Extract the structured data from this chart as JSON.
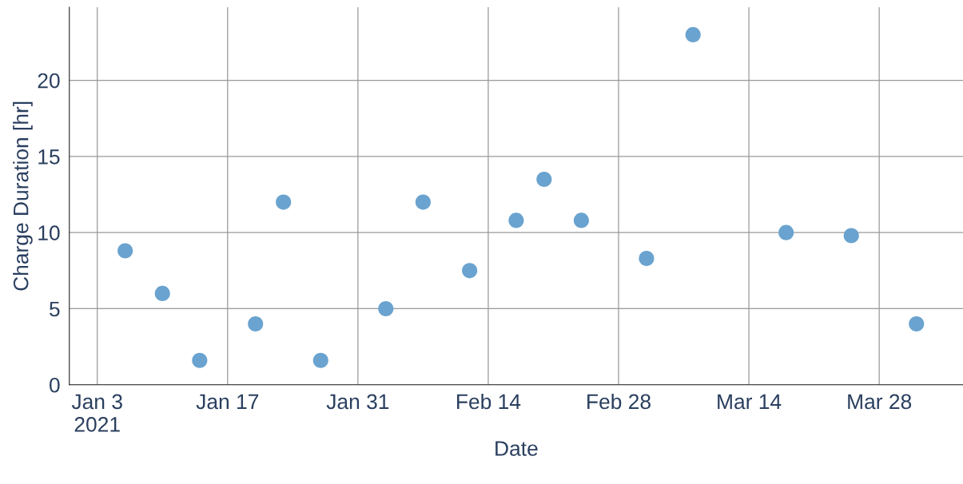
{
  "chart_data": {
    "type": "scatter",
    "xlabel": "Date",
    "ylabel": "Charge Duration [hr]",
    "x": [
      "2021-01-06",
      "2021-01-10",
      "2021-01-14",
      "2021-01-20",
      "2021-01-23",
      "2021-01-27",
      "2021-02-03",
      "2021-02-07",
      "2021-02-12",
      "2021-02-17",
      "2021-02-20",
      "2021-02-24",
      "2021-03-03",
      "2021-03-08",
      "2021-03-18",
      "2021-03-25",
      "2021-04-01"
    ],
    "series": [
      {
        "color": "#6aa3cf",
        "values": [
          8.8,
          6,
          1.6,
          4,
          12,
          1.6,
          5,
          12,
          7.5,
          10.8,
          13.5,
          10.8,
          8.3,
          23,
          10,
          9.8,
          4
        ]
      }
    ],
    "xlim": [
      "2020-12-31",
      "2021-04-06"
    ],
    "xticks": [
      {
        "value": "2021-01-03",
        "label": "Jan 3\n2021"
      },
      {
        "value": "2021-01-17",
        "label": "Jan 17"
      },
      {
        "value": "2021-01-31",
        "label": "Jan 31"
      },
      {
        "value": "2021-02-14",
        "label": "Feb 14"
      },
      {
        "value": "2021-02-28",
        "label": "Feb 28"
      },
      {
        "value": "2021-03-14",
        "label": "Mar 14"
      },
      {
        "value": "2021-03-28",
        "label": "Mar 28"
      }
    ],
    "ylim": [
      0,
      24.8
    ],
    "yticks": [
      0,
      5,
      10,
      15,
      20
    ],
    "grid": true,
    "marker": "circle",
    "legend": false
  }
}
